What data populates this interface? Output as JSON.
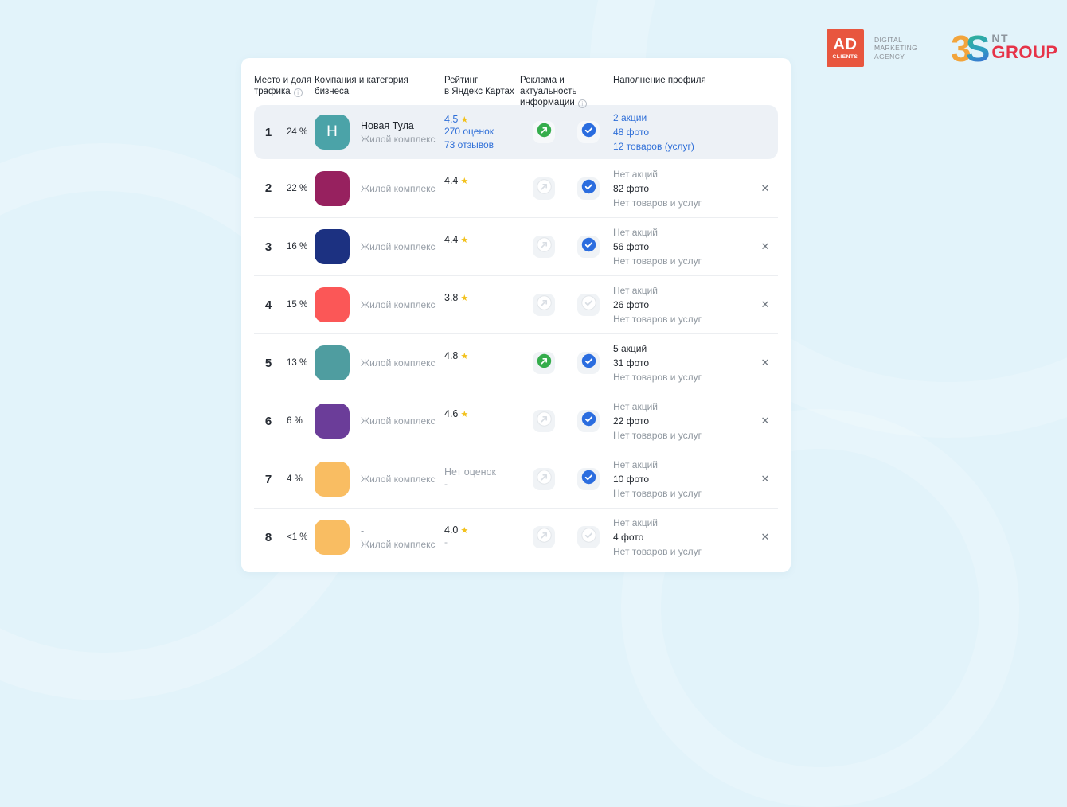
{
  "brand": {
    "adclients": {
      "box_label_top": "AD",
      "box_label_bottom": "CLIENTS",
      "box_color": "#E8563E",
      "tagline": [
        "DIGITAL",
        "MARKETING",
        "AGENCY"
      ]
    },
    "ntgroup": {
      "digit": "3",
      "letter": "S",
      "name_top": "NT",
      "name_bottom": "GROUP",
      "digit_color": "#F2A43B",
      "letter_colors": [
        "#2FAE9E",
        "#3B6FD4"
      ],
      "name_top_color": "#8E969E",
      "name_bottom_color": "#E63348"
    }
  },
  "colors": {
    "page_bg": "#E2F3FA",
    "card_bg": "#FFFFFF",
    "highlight_row_bg": "#EDF1F6",
    "link": "#2F6FD8",
    "star": "#F2C11C",
    "ads_active_green": "#35AD4C",
    "verified_active_blue": "#2B6DDF"
  },
  "table": {
    "columns": [
      {
        "lines": [
          "Место и доля",
          "трафика"
        ],
        "info": true
      },
      {
        "lines": [
          "Компания и категория бизнеса"
        ],
        "info": false
      },
      {
        "lines": [
          "Рейтинг",
          "в Яндекс Картах"
        ],
        "info": false
      },
      {
        "lines": [
          "Реклама и актуальность",
          "информации"
        ],
        "info": true
      },
      {
        "lines": [
          "Наполнение профиля"
        ],
        "info": false
      }
    ],
    "close_glyph": "✕",
    "rows": [
      {
        "rank": "1",
        "share": "24 %",
        "avatar": {
          "color": "#4BA3A8",
          "letter": "Н"
        },
        "name": "Новая Тула",
        "category": "Жилой комплекс",
        "rating": {
          "value": "4.5",
          "star": true,
          "link_style": true,
          "lines": [
            "270 оценок",
            "73 отзывов"
          ],
          "sub": ""
        },
        "ads_active": true,
        "verified_active": true,
        "profile": {
          "link_style": true,
          "lines": [
            "2 акции",
            "48 фото",
            "12 товаров (услуг)"
          ]
        },
        "closable": false,
        "highlighted": true
      },
      {
        "rank": "2",
        "share": "22 %",
        "avatar": {
          "color": "#97215F",
          "letter": ""
        },
        "name": "",
        "category": "Жилой комплекс",
        "rating": {
          "value": "4.4",
          "star": true,
          "link_style": false,
          "lines": [],
          "sub": ""
        },
        "ads_active": false,
        "verified_active": true,
        "profile": {
          "link_style": false,
          "lines": [
            "Нет акций",
            "82 фото",
            "Нет товаров и услуг"
          ]
        },
        "closable": true,
        "highlighted": false
      },
      {
        "rank": "3",
        "share": "16 %",
        "avatar": {
          "color": "#1C3181",
          "letter": ""
        },
        "name": "",
        "category": "Жилой комплекс",
        "rating": {
          "value": "4.4",
          "star": true,
          "link_style": false,
          "lines": [],
          "sub": ""
        },
        "ads_active": false,
        "verified_active": true,
        "profile": {
          "link_style": false,
          "lines": [
            "Нет акций",
            "56 фото",
            "Нет товаров и услуг"
          ]
        },
        "closable": true,
        "highlighted": false
      },
      {
        "rank": "4",
        "share": "15 %",
        "avatar": {
          "color": "#FB5757",
          "letter": ""
        },
        "name": "",
        "category": "Жилой комплекс",
        "rating": {
          "value": "3.8",
          "star": true,
          "link_style": false,
          "lines": [],
          "sub": ""
        },
        "ads_active": false,
        "verified_active": false,
        "profile": {
          "link_style": false,
          "lines": [
            "Нет акций",
            "26 фото",
            "Нет товаров и услуг"
          ]
        },
        "closable": true,
        "highlighted": false
      },
      {
        "rank": "5",
        "share": "13 %",
        "avatar": {
          "color": "#4F9DA0",
          "letter": ""
        },
        "name": "",
        "category": "Жилой комплекс",
        "rating": {
          "value": "4.8",
          "star": true,
          "link_style": false,
          "lines": [],
          "sub": ""
        },
        "ads_active": true,
        "verified_active": true,
        "profile": {
          "link_style": false,
          "lines": [
            "5 акций",
            "31 фото",
            "Нет товаров и услуг"
          ]
        },
        "closable": true,
        "highlighted": false
      },
      {
        "rank": "6",
        "share": "6 %",
        "avatar": {
          "color": "#6B3D99",
          "letter": ""
        },
        "name": "",
        "category": "Жилой комплекс",
        "rating": {
          "value": "4.6",
          "star": true,
          "link_style": false,
          "lines": [],
          "sub": ""
        },
        "ads_active": false,
        "verified_active": true,
        "profile": {
          "link_style": false,
          "lines": [
            "Нет акций",
            "22 фото",
            "Нет товаров и услуг"
          ]
        },
        "closable": true,
        "highlighted": false
      },
      {
        "rank": "7",
        "share": "4 %",
        "avatar": {
          "color": "#F9BD62",
          "letter": ""
        },
        "name": "",
        "category": "Жилой комплекс",
        "rating": {
          "value": "Нет оценок",
          "star": false,
          "link_style": false,
          "lines": [],
          "sub": "-"
        },
        "ads_active": false,
        "verified_active": true,
        "profile": {
          "link_style": false,
          "lines": [
            "Нет акций",
            "10 фото",
            "Нет товаров и услуг"
          ]
        },
        "closable": true,
        "highlighted": false
      },
      {
        "rank": "8",
        "share": "<1 %",
        "avatar": {
          "color": "#F9BD62",
          "letter": ""
        },
        "name": "-",
        "category": "Жилой комплекс",
        "rating": {
          "value": "4.0",
          "star": true,
          "link_style": false,
          "lines": [],
          "sub": "-"
        },
        "ads_active": false,
        "verified_active": false,
        "profile": {
          "link_style": false,
          "lines": [
            "Нет акций",
            "4 фото",
            "Нет товаров и услуг"
          ]
        },
        "closable": true,
        "highlighted": false
      }
    ]
  }
}
